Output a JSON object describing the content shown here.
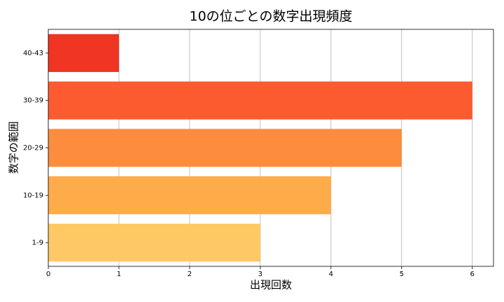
{
  "chart_data": {
    "type": "barh",
    "title": "10の位ごとの数字出現頻度",
    "xlabel": "出現回数",
    "ylabel": "数字の範囲",
    "categories": [
      "1-9",
      "10-19",
      "20-29",
      "30-39",
      "40-43"
    ],
    "values": [
      3,
      4,
      5,
      6,
      1
    ],
    "colors": [
      "#fec965",
      "#feab4a",
      "#fd8d3c",
      "#fc5b30",
      "#f03523"
    ],
    "xlim": [
      0,
      6.3
    ],
    "xticks": [
      0,
      1,
      2,
      3,
      4,
      5,
      6
    ],
    "grid": true
  }
}
